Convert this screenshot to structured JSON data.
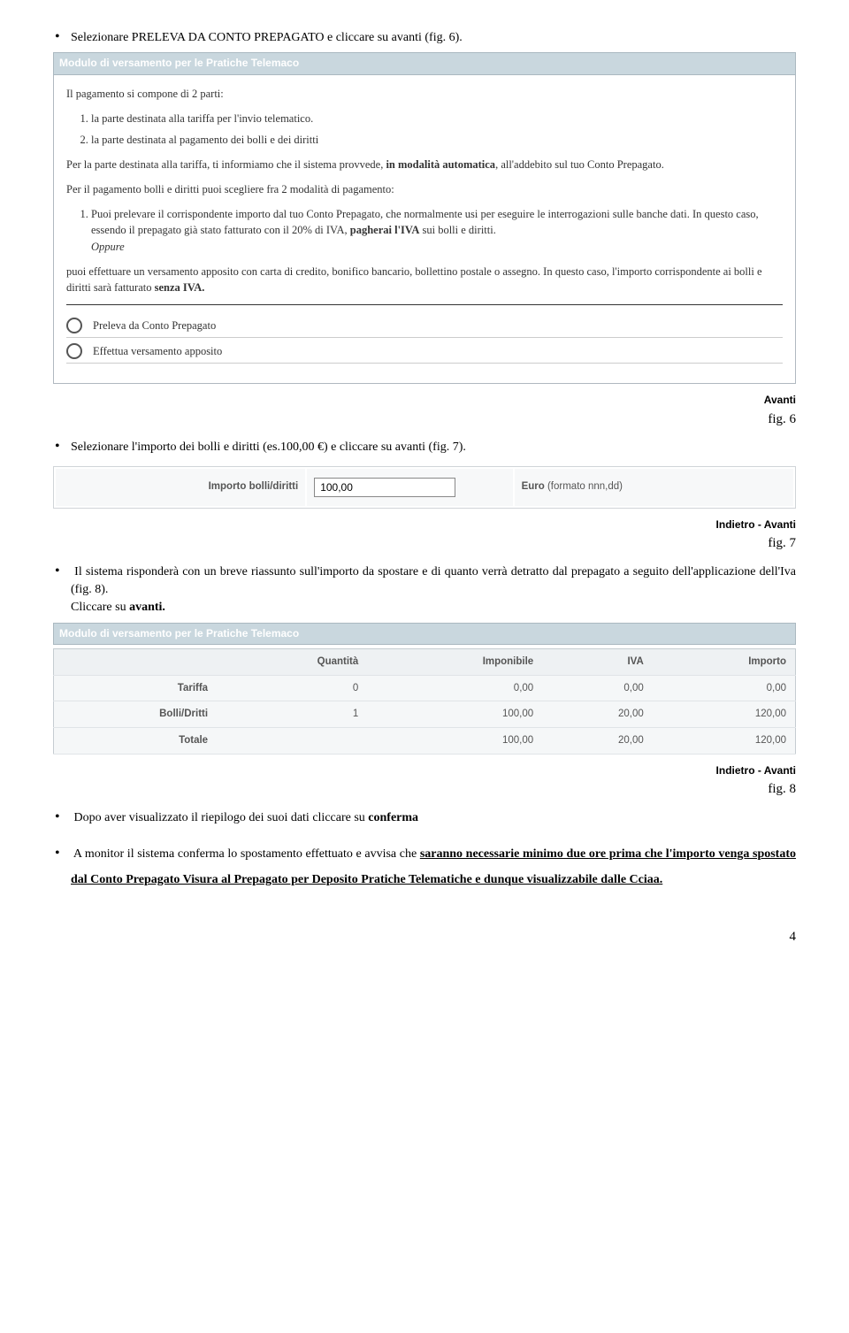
{
  "intro_bullet": {
    "prefix": "Selezionare PRELEVA DA CONTO PREPAGATO e cliccare su avanti (fig. 6)."
  },
  "module_title": "Modulo di versamento per le Pratiche Telemaco",
  "panel1": {
    "p1": "Il pagamento si compone di 2 parti:",
    "li1": "la parte destinata alla tariffa per l'invio telematico.",
    "li2": "la parte destinata al pagamento dei bolli e dei diritti",
    "p2a": "Per la parte destinata alla tariffa, ti informiamo che il sistema provvede, ",
    "p2b": "in modalità automatica",
    "p2c": ", all'addebito sul tuo Conto Prepagato.",
    "p3": "Per il pagamento bolli e diritti puoi scegliere fra 2 modalità di pagamento:",
    "li3a": "Puoi prelevare il corrispondente importo dal tuo Conto Prepagato, che normalmente usi per eseguire le interrogazioni sulle banche dati. In questo caso, essendo il prepagato già stato fatturato con il 20% di IVA, ",
    "li3b": "pagherai l'IVA",
    "li3c": " sui bolli e diritti.",
    "li3d": "Oppure",
    "p4a": "puoi effettuare un versamento apposito con carta di credito, bonifico bancario, bollettino postale o assegno. In questo caso, l'importo corrispondente ai bolli e diritti sarà fatturato ",
    "p4b": "senza IVA.",
    "radio1": "Preleva da Conto Prepagato",
    "radio2": "Effettua versamento apposito"
  },
  "nav": {
    "avanti": "Avanti",
    "indietro": "Indietro",
    "sep": "  -  "
  },
  "fig6": "fig. 6",
  "bullet2": "Selezionare l'importo dei bolli e diritti (es.100,00 €) e cliccare su avanti (fig. 7).",
  "amount": {
    "label": "Importo bolli/diritti",
    "value": "100,00",
    "hint_bold": "Euro",
    "hint_rest": " (formato nnn,dd)"
  },
  "fig7": "fig. 7",
  "bullet3a": "Il sistema risponderà con un breve riassunto sull'importo da spostare e di quanto verrà detratto dal prepagato a seguito dell'applicazione dell'Iva (fig. 8).",
  "bullet3b": "Cliccare su ",
  "bullet3c": "avanti.",
  "sumtable": {
    "h1": "Quantità",
    "h2": "Imponibile",
    "h3": "IVA",
    "h4": "Importo",
    "r1": {
      "label": "Tariffa",
      "c1": "0",
      "c2": "0,00",
      "c3": "0,00",
      "c4": "0,00"
    },
    "r2": {
      "label": "Bolli/Dritti",
      "c1": "1",
      "c2": "100,00",
      "c3": "20,00",
      "c4": "120,00"
    },
    "r3": {
      "label": "Totale",
      "c2": "100,00",
      "c3": "20,00",
      "c4": "120,00"
    }
  },
  "fig8": "fig. 8",
  "bullet4a": "Dopo aver visualizzato il riepilogo dei suoi dati cliccare su ",
  "bullet4b": "conferma",
  "bullet5a": "A monitor il sistema conferma lo spostamento effettuato e avvisa che ",
  "bullet5b": "saranno necessarie minimo due ore prima che l'importo venga spostato  dal Conto Prepagato Visura al Prepagato per Deposito Pratiche Telematiche e dunque visualizzabile dalle Cciaa.",
  "page_number": "4"
}
